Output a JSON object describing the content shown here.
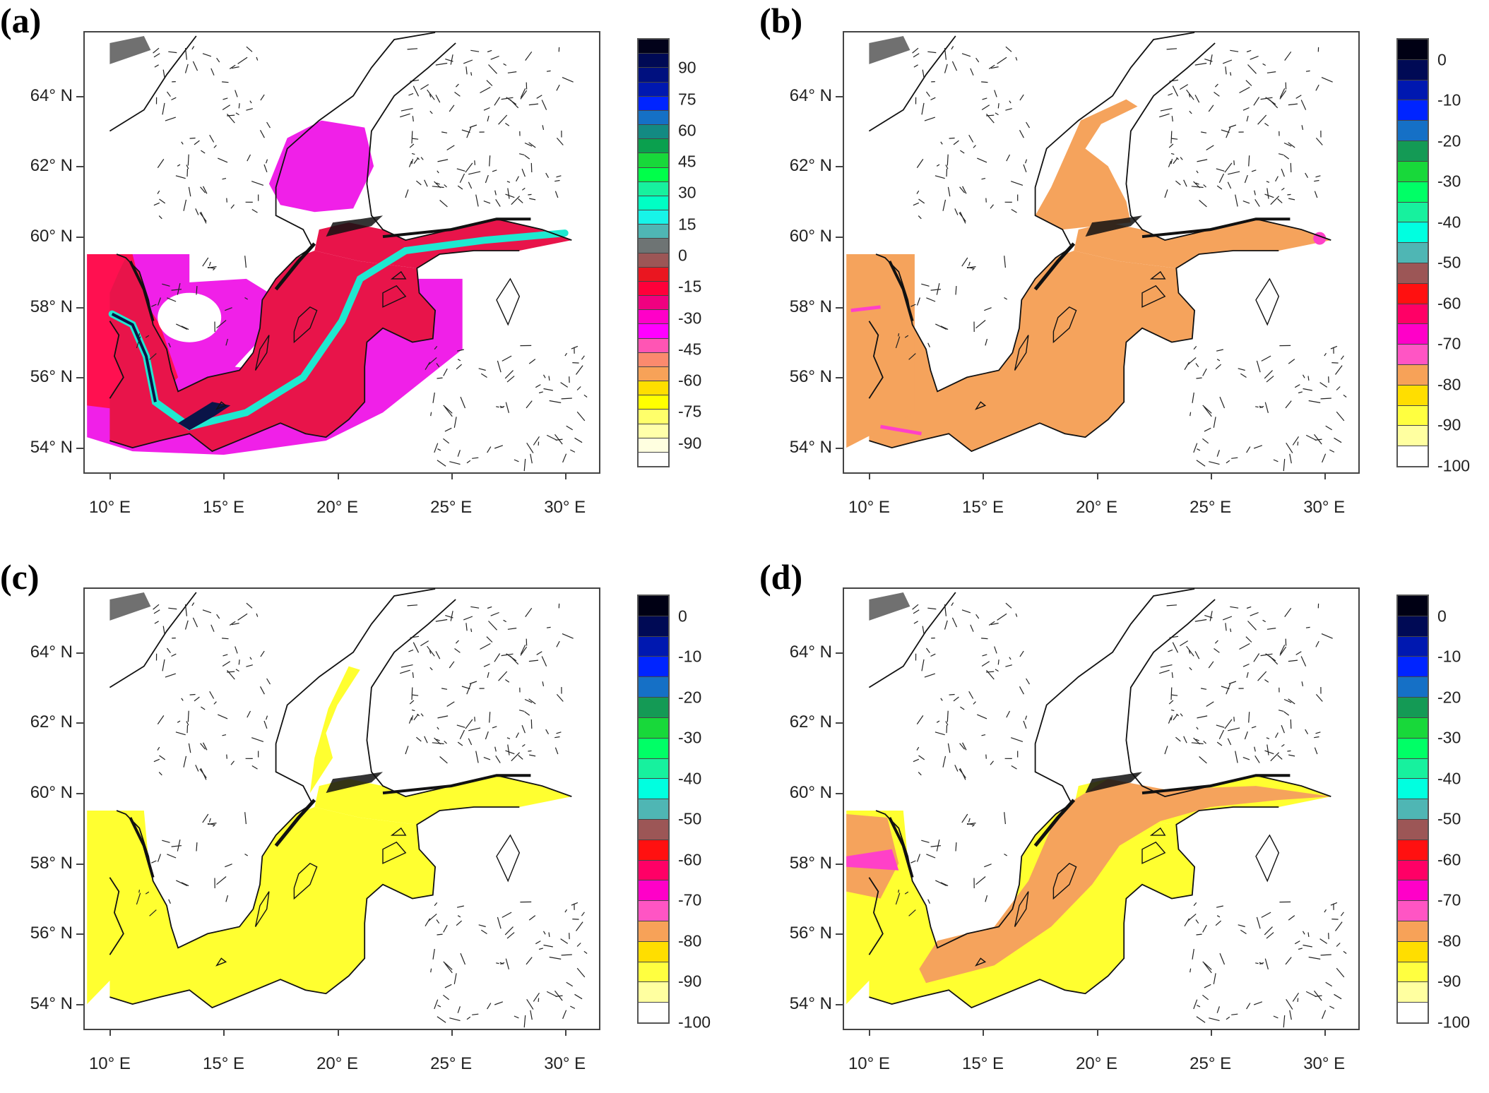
{
  "lat_labels": [
    "64° N",
    "62° N",
    "60° N",
    "58° N",
    "56° N",
    "54° N"
  ],
  "lon_labels": [
    "10° E",
    "15° E",
    "20° E",
    "25° E",
    "30° E"
  ],
  "panels": [
    {
      "id": "a",
      "label": "(a)",
      "colorbar_labels": [
        "90",
        "75",
        "60",
        "45",
        "30",
        "15",
        "0",
        "-15",
        "-30",
        "-45",
        "-60",
        "-75",
        "-90"
      ],
      "colorbar_colors": [
        "#02021a",
        "#000a55",
        "#00107f",
        "#0018b0",
        "#0024ff",
        "#1570c6",
        "#138a82",
        "#0aa04e",
        "#18d83a",
        "#00ff4a",
        "#17f19e",
        "#00ffc4",
        "#17f4e8",
        "#4fb6b4",
        "#6e7474",
        "#9c5656",
        "#ea1620",
        "#ff003a",
        "#f00080",
        "#ff00c8",
        "#ff00ff",
        "#ff55b4",
        "#fb8a6e",
        "#f7a258",
        "#ffde00",
        "#ffff00",
        "#ffff6a",
        "#ffffaa",
        "#ffffe0",
        "#ffffff"
      ],
      "field": "magenta-red"
    },
    {
      "id": "b",
      "label": "(b)",
      "colorbar_labels": [
        "0",
        "-10",
        "-20",
        "-30",
        "-40",
        "-50",
        "-60",
        "-70",
        "-80",
        "-90",
        "-100"
      ],
      "colorbar_colors": [
        "#000014",
        "#000a55",
        "#0018b0",
        "#0024ff",
        "#1570c6",
        "#149a55",
        "#18d83a",
        "#00ff66",
        "#17f19e",
        "#00ffe0",
        "#4fb6b4",
        "#9c5656",
        "#ff1010",
        "#ff0066",
        "#ff00c8",
        "#ff55c4",
        "#f7a258",
        "#ffde00",
        "#ffff40",
        "#ffffa0",
        "#ffffff"
      ],
      "field": "orange"
    },
    {
      "id": "c",
      "label": "(c)",
      "colorbar_labels": [
        "0",
        "-10",
        "-20",
        "-30",
        "-40",
        "-50",
        "-60",
        "-70",
        "-80",
        "-90",
        "-100"
      ],
      "colorbar_colors": [
        "#000014",
        "#000a55",
        "#0018b0",
        "#0024ff",
        "#1570c6",
        "#149a55",
        "#18d83a",
        "#00ff66",
        "#17f19e",
        "#00ffe0",
        "#4fb6b4",
        "#9c5656",
        "#ff1010",
        "#ff0066",
        "#ff00c8",
        "#ff55c4",
        "#f7a258",
        "#ffde00",
        "#ffff40",
        "#ffffa0",
        "#ffffff"
      ],
      "field": "yellow"
    },
    {
      "id": "d",
      "label": "(d)",
      "colorbar_labels": [
        "0",
        "-10",
        "-20",
        "-30",
        "-40",
        "-50",
        "-60",
        "-70",
        "-80",
        "-90",
        "-100"
      ],
      "colorbar_colors": [
        "#000014",
        "#000a55",
        "#0018b0",
        "#0024ff",
        "#1570c6",
        "#149a55",
        "#18d83a",
        "#00ff66",
        "#17f19e",
        "#00ffe0",
        "#4fb6b4",
        "#9c5656",
        "#ff1010",
        "#ff0066",
        "#ff00c8",
        "#ff55c4",
        "#f7a258",
        "#ffde00",
        "#ffff40",
        "#ffffa0",
        "#ffffff"
      ],
      "field": "orange-yellow"
    }
  ],
  "field_colors": {
    "magenta": "#f020e8",
    "red": "#ff1050",
    "crimson": "#e8144a",
    "cyan": "#1fe8d0",
    "navy": "#0a1448",
    "orange": "#f5a35c",
    "pink": "#ff40c8",
    "yellow": "#ffff30"
  }
}
